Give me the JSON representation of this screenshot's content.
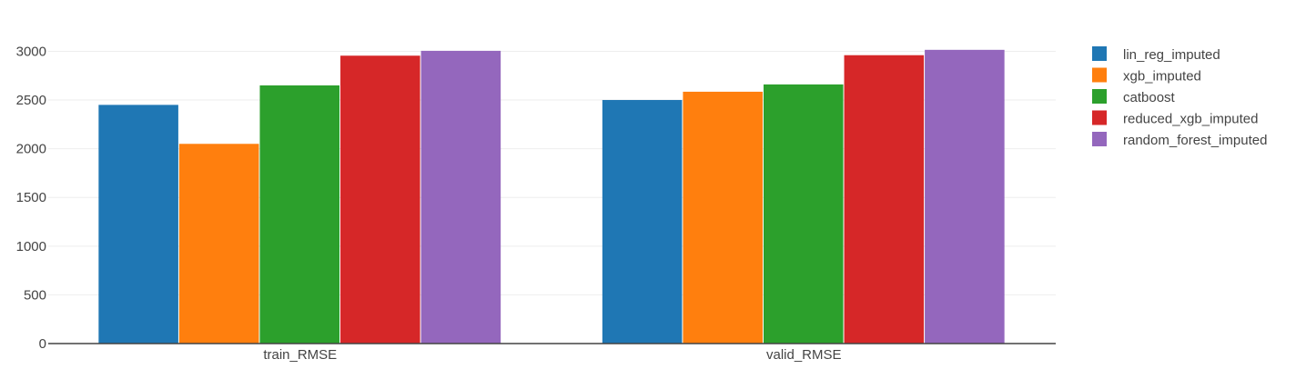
{
  "chart_data": {
    "type": "bar",
    "categories": [
      "train_RMSE",
      "valid_RMSE"
    ],
    "series": [
      {
        "name": "lin_reg_imputed",
        "color": "#1f77b4",
        "values": [
          2450,
          2500
        ]
      },
      {
        "name": "xgb_imputed",
        "color": "#ff7f0e",
        "values": [
          2050,
          2585
        ]
      },
      {
        "name": "catboost",
        "color": "#2ca02c",
        "values": [
          2650,
          2660
        ]
      },
      {
        "name": "reduced_xgb_imputed",
        "color": "#d62728",
        "values": [
          2955,
          2960
        ]
      },
      {
        "name": "random_forest_imputed",
        "color": "#9467bd",
        "values": [
          3005,
          3015
        ]
      }
    ],
    "y_ticks": [
      0,
      500,
      1000,
      1500,
      2000,
      2500,
      3000
    ],
    "ylim": [
      0,
      3200
    ],
    "grid": true,
    "legend_position": "top-right"
  }
}
